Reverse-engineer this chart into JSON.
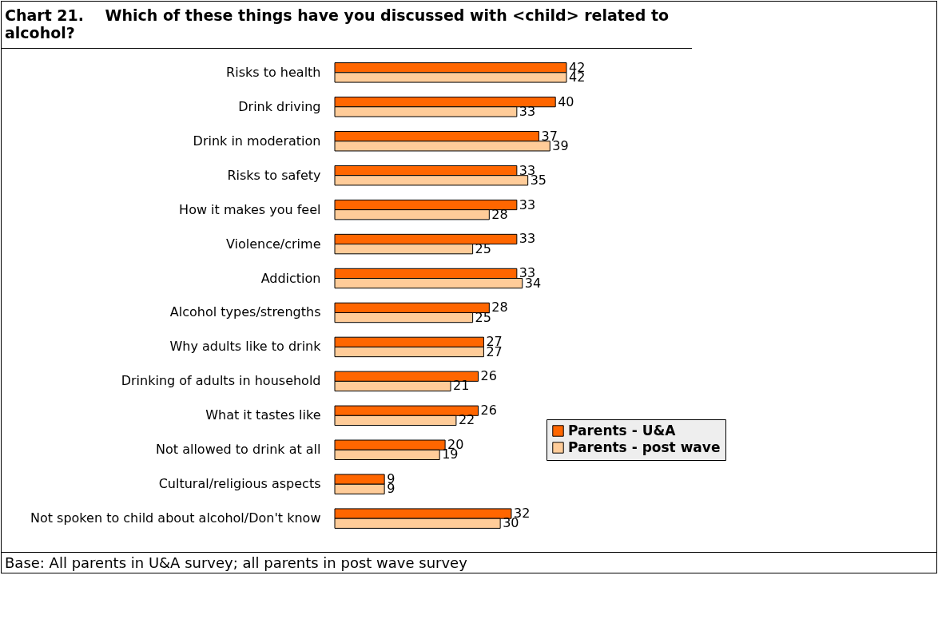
{
  "chart_data": {
    "type": "bar",
    "orientation": "horizontal",
    "title": "Chart 21.    Which of these things have you discussed with <child> related to alcohol?",
    "categories": [
      "Risks to health",
      "Drink driving",
      "Drink in moderation",
      "Risks to safety",
      "How it makes you feel",
      "Violence/crime",
      "Addiction",
      "Alcohol types/strengths",
      "Why adults like to drink",
      "Drinking of adults in household",
      "What it tastes like",
      "Not allowed to drink at all",
      "Cultural/religious aspects",
      "Not spoken to child about alcohol/Don't know"
    ],
    "series": [
      {
        "name": "Parents - U&A",
        "color": "#ff6600",
        "values": [
          42,
          40,
          37,
          33,
          33,
          33,
          33,
          28,
          27,
          26,
          26,
          20,
          9,
          32
        ]
      },
      {
        "name": "Parents - post wave",
        "color": "#ffcc99",
        "values": [
          42,
          33,
          39,
          35,
          28,
          25,
          34,
          25,
          27,
          21,
          22,
          19,
          9,
          30
        ]
      }
    ],
    "data_labels": true,
    "legend": "right",
    "tick_labels": "y",
    "annotations": [
      "Base: All parents in U&A survey; all parents in post wave survey"
    ]
  }
}
